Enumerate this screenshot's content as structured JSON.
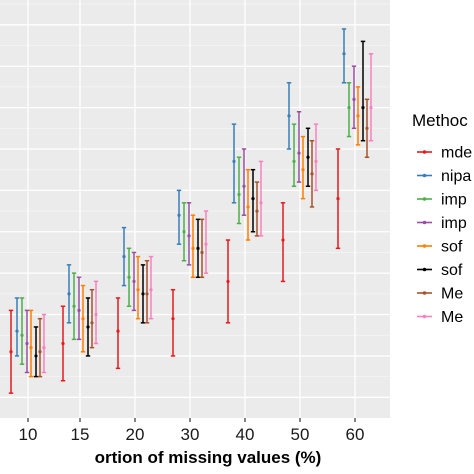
{
  "chart_data": {
    "type": "errorbar",
    "categories": [
      "10",
      "15",
      "20",
      "30",
      "40",
      "50",
      "60"
    ],
    "xlabel": "ortion of missing values (%)",
    "ylabel": "",
    "grid": true,
    "legend_position": "right",
    "legend_title": "Methoc",
    "series": [
      {
        "name": "mde",
        "color": "#e41a1c",
        "mean": [
          3.1,
          3.3,
          3.6,
          3.9,
          4.8,
          5.8,
          6.8
        ],
        "lower": [
          2.1,
          2.4,
          2.7,
          3.0,
          3.8,
          4.8,
          5.6
        ],
        "upper": [
          4.1,
          4.2,
          4.4,
          4.6,
          5.8,
          6.7,
          8.0
        ]
      },
      {
        "name": "nipa",
        "color": "#377eb8",
        "mean": [
          3.6,
          4.5,
          5.4,
          6.4,
          7.7,
          8.8,
          10.3
        ],
        "lower": [
          3.0,
          3.8,
          4.7,
          5.7,
          6.7,
          8.0,
          9.6
        ],
        "upper": [
          4.4,
          5.2,
          6.1,
          7.0,
          8.6,
          9.6,
          10.9
        ]
      },
      {
        "name": "imp",
        "color": "#4daf4a",
        "mean": [
          3.5,
          4.2,
          4.9,
          6.0,
          6.9,
          7.7,
          9.0
        ],
        "lower": [
          2.8,
          3.4,
          4.2,
          5.3,
          6.2,
          7.1,
          8.3
        ],
        "upper": [
          4.4,
          5.0,
          5.6,
          6.7,
          7.8,
          8.6,
          9.6
        ]
      },
      {
        "name": "imp",
        "color": "#984ea3",
        "mean": [
          3.3,
          4.1,
          4.8,
          5.9,
          7.1,
          7.9,
          9.2
        ],
        "lower": [
          2.6,
          3.4,
          4.1,
          5.2,
          6.4,
          7.2,
          8.5
        ],
        "upper": [
          4.1,
          4.9,
          5.5,
          6.7,
          8.0,
          8.9,
          10.0
        ]
      },
      {
        "name": "sof",
        "color": "#ff7f00",
        "mean": [
          3.2,
          3.9,
          4.6,
          5.6,
          6.6,
          7.5,
          8.8
        ],
        "lower": [
          2.5,
          3.1,
          3.9,
          4.9,
          5.8,
          6.8,
          8.1
        ],
        "upper": [
          4.1,
          4.7,
          5.4,
          6.4,
          7.5,
          8.3,
          9.5
        ]
      },
      {
        "name": "sof",
        "color": "#000000",
        "mean": [
          3.0,
          3.7,
          4.5,
          5.6,
          6.8,
          7.8,
          9.0
        ],
        "lower": [
          2.5,
          3.0,
          3.8,
          4.9,
          6.0,
          7.1,
          8.2
        ],
        "upper": [
          3.7,
          4.4,
          5.2,
          6.3,
          7.5,
          8.5,
          10.6
        ]
      },
      {
        "name": "Me",
        "color": "#a6522b",
        "mean": [
          3.1,
          3.8,
          4.5,
          5.5,
          6.5,
          7.4,
          8.5
        ],
        "lower": [
          2.5,
          3.2,
          3.8,
          4.9,
          5.9,
          6.6,
          7.8
        ],
        "upper": [
          3.9,
          4.6,
          5.3,
          6.3,
          7.2,
          8.2,
          9.2
        ]
      },
      {
        "name": "Me",
        "color": "#f781bf",
        "mean": [
          3.2,
          4.0,
          4.6,
          5.7,
          6.7,
          7.7,
          9.0
        ],
        "lower": [
          2.6,
          3.3,
          3.9,
          5.0,
          5.9,
          7.0,
          8.2
        ],
        "upper": [
          4.0,
          4.8,
          5.4,
          6.5,
          7.7,
          8.6,
          10.3
        ]
      }
    ]
  }
}
